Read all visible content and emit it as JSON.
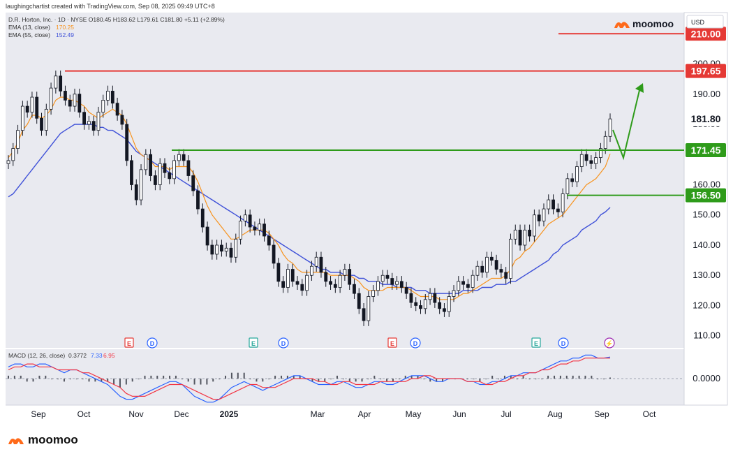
{
  "header": {
    "credit": "laughingchartist created with TradingView.com, Sep 08, 2025 09:49 UTC+8",
    "symbol_line": "D.R. Horton, Inc. · 1D · NYSE  O180.45  H183.62  L179.61  C181.80  +5.11 (+2.89%)",
    "ema13_label": "EMA (13, close)",
    "ema13_value": "170.25",
    "ema55_label": "EMA (55, close)",
    "ema55_value": "152.49"
  },
  "brand": {
    "name": "moomoo",
    "name_bottom": "moomoo"
  },
  "currency": "USD",
  "colors": {
    "up": "#ffffff",
    "down": "#131722",
    "ema13": "#f7931e",
    "ema55": "#3f51d8",
    "resistance": "#e53935",
    "support": "#2e9b1a",
    "arrow": "#2e9b1a",
    "panel_bg": "#e9eaf0",
    "macd_line": "#2962ff",
    "signal_line": "#f23645"
  },
  "chart_data": {
    "type": "candlestick",
    "title": "D.R. Horton, Inc. · 1D · NYSE",
    "ylim": [
      106,
      217
    ],
    "y_ticks": [
      "110.00",
      "120.00",
      "130.00",
      "140.00",
      "150.00",
      "160.00",
      "170.00",
      "180.00",
      "190.00",
      "200.00"
    ],
    "x_ticks": [
      "Sep",
      "Oct",
      "Nov",
      "Dec",
      "2025",
      "Mar",
      "Apr",
      "May",
      "Jun",
      "Jul",
      "Aug",
      "Sep",
      "Oct"
    ],
    "price_tags": [
      {
        "label": "210.00",
        "value": 210.0,
        "kind": "resistance"
      },
      {
        "label": "197.65",
        "value": 197.65,
        "kind": "resistance"
      },
      {
        "label": "181.80",
        "value": 181.8,
        "kind": "last"
      },
      {
        "label": "171.45",
        "value": 171.45,
        "kind": "support"
      },
      {
        "label": "156.50",
        "value": 156.5,
        "kind": "support"
      }
    ],
    "levels": [
      {
        "value": 210.0,
        "from_month": "Oct-2025",
        "kind": "resistance"
      },
      {
        "value": 197.65,
        "from_month": "Sep-2024",
        "kind": "resistance"
      },
      {
        "value": 171.45,
        "from_month": "Dec-2024",
        "kind": "support"
      },
      {
        "value": 156.5,
        "from_month": "Aug-2025",
        "kind": "support"
      }
    ],
    "price_path": [
      168,
      172,
      178,
      186,
      184,
      189,
      182,
      178,
      185,
      192,
      196,
      191,
      188,
      186,
      190,
      184,
      180,
      181,
      178,
      184,
      188,
      191,
      187,
      183,
      180,
      168,
      160,
      155,
      165,
      170,
      163,
      160,
      167,
      164,
      162,
      168,
      170,
      168,
      163,
      158,
      152,
      146,
      140,
      137,
      140,
      138,
      139,
      136,
      142,
      148,
      150,
      146,
      145,
      147,
      143,
      140,
      134,
      128,
      126,
      132,
      128,
      127,
      125,
      130,
      133,
      136,
      131,
      128,
      127,
      126,
      130,
      132,
      127,
      124,
      119,
      115,
      123,
      125,
      128,
      130,
      129,
      127,
      128,
      126,
      124,
      121,
      120,
      119,
      122,
      124,
      121,
      119,
      118,
      123,
      125,
      128,
      127,
      126,
      130,
      133,
      131,
      136,
      135,
      132,
      131,
      129,
      142,
      145,
      140,
      145,
      143,
      150,
      148,
      152,
      155,
      152,
      151,
      157,
      162,
      161,
      166,
      170,
      168,
      167,
      169,
      172,
      176,
      181.8
    ],
    "ema13_path": [
      169,
      171,
      174,
      178,
      180,
      183,
      183,
      182,
      183,
      185,
      188,
      189,
      189,
      188,
      188,
      187,
      186,
      184,
      183,
      182,
      183,
      184,
      185,
      184,
      183,
      180,
      176,
      172,
      170,
      169,
      168,
      166,
      166,
      166,
      165,
      166,
      166,
      166,
      166,
      164,
      161,
      157,
      153,
      150,
      148,
      146,
      144,
      142,
      142,
      143,
      144,
      145,
      145,
      145,
      145,
      144,
      142,
      140,
      137,
      135,
      134,
      132,
      131,
      131,
      131,
      131,
      131,
      131,
      130,
      130,
      130,
      130,
      130,
      129,
      128,
      126,
      125,
      125,
      125,
      125,
      126,
      126,
      126,
      126,
      126,
      125,
      124,
      123,
      123,
      123,
      123,
      122,
      122,
      122,
      122,
      123,
      124,
      124,
      125,
      126,
      127,
      128,
      129,
      129,
      129,
      130,
      132,
      135,
      136,
      138,
      139,
      141,
      143,
      145,
      147,
      148,
      149,
      150,
      152,
      154,
      156,
      158,
      160,
      161,
      162,
      164,
      166,
      170.25
    ],
    "ema55_path": [
      156,
      157,
      159,
      161,
      163,
      165,
      167,
      169,
      171,
      173,
      175,
      177,
      178,
      179,
      180,
      180,
      180,
      180,
      180,
      179,
      179,
      178,
      178,
      177,
      176,
      175,
      173,
      171,
      170,
      169,
      168,
      167,
      166,
      165,
      164,
      163,
      162,
      161,
      160,
      159,
      158,
      157,
      156,
      155,
      154,
      153,
      152,
      151,
      150,
      149,
      148,
      147,
      146,
      145,
      144,
      143,
      142,
      141,
      140,
      139,
      138,
      137,
      136,
      135,
      134,
      133,
      132,
      132,
      131,
      131,
      131,
      130,
      130,
      130,
      129,
      129,
      128,
      128,
      128,
      127,
      127,
      127,
      126,
      126,
      126,
      126,
      125,
      125,
      125,
      124,
      124,
      124,
      124,
      124,
      124,
      124,
      125,
      125,
      125,
      125,
      126,
      126,
      126,
      127,
      127,
      127,
      128,
      128,
      129,
      130,
      131,
      132,
      133,
      134,
      135,
      137,
      138,
      140,
      141,
      142,
      143,
      145,
      146,
      147,
      148,
      150,
      151,
      152.49
    ],
    "events": [
      {
        "label": "E",
        "month": "Oct",
        "kind": "earnings"
      },
      {
        "label": "D",
        "month": "Nov",
        "kind": "dividend"
      },
      {
        "label": "E",
        "month": "Jan",
        "kind": "earnings"
      },
      {
        "label": "D",
        "month": "Feb",
        "kind": "dividend"
      },
      {
        "label": "E",
        "month": "Apr",
        "kind": "earnings"
      },
      {
        "label": "D",
        "month": "May",
        "kind": "dividend"
      },
      {
        "label": "E",
        "month": "Jul",
        "kind": "earnings"
      },
      {
        "label": "D",
        "month": "Aug",
        "kind": "dividend"
      },
      {
        "label": "⚡",
        "month": "Sep",
        "kind": "split"
      }
    ],
    "macd": {
      "label": "MACD (12, 26, close)",
      "hist_value": "0.3772",
      "macd_value": "7.33",
      "signal_value": "6.95",
      "zero_label": "0.0000",
      "ylim": [
        -9,
        10
      ],
      "macd_path": [
        4,
        5,
        5,
        4,
        4,
        5,
        5,
        4,
        3,
        2,
        3,
        3,
        2,
        1,
        0,
        -1,
        -2,
        -4,
        -6,
        -7,
        -7,
        -6,
        -5,
        -4,
        -3,
        -2,
        -1,
        -1,
        -2,
        -4,
        -6,
        -7,
        -8,
        -8,
        -7,
        -5,
        -3,
        -2,
        -1,
        -2,
        -3,
        -4,
        -3,
        -2,
        -1,
        0,
        1,
        1,
        0,
        -1,
        -2,
        -2,
        -2,
        -1,
        -1,
        -2,
        -3,
        -3,
        -2,
        -1,
        -1,
        -2,
        -2,
        -1,
        0,
        1,
        1,
        1,
        0,
        -1,
        -1,
        0,
        0,
        0,
        -1,
        -1,
        -2,
        -2,
        -1,
        -1,
        0,
        1,
        1,
        2,
        2,
        2,
        3,
        4,
        5,
        6,
        6,
        7,
        7,
        8,
        8,
        7,
        7,
        7.33
      ],
      "signal_path": [
        3,
        4,
        4,
        5,
        5,
        4,
        4,
        4,
        3,
        3,
        3,
        3,
        2,
        2,
        1,
        0,
        -1,
        -2,
        -3,
        -5,
        -6,
        -6,
        -6,
        -5,
        -4,
        -3,
        -2,
        -2,
        -2,
        -3,
        -4,
        -5,
        -6,
        -7,
        -7,
        -6,
        -5,
        -4,
        -3,
        -2,
        -2,
        -3,
        -3,
        -3,
        -2,
        -1,
        0,
        0,
        0,
        0,
        -1,
        -1,
        -2,
        -2,
        -1,
        -1,
        -2,
        -2,
        -2,
        -2,
        -1,
        -1,
        -1,
        -1,
        -1,
        0,
        0,
        1,
        1,
        0,
        0,
        0,
        0,
        0,
        -1,
        -1,
        -1,
        -2,
        -2,
        -1,
        -1,
        0,
        1,
        1,
        2,
        2,
        3,
        3,
        4,
        5,
        5,
        6,
        6,
        7,
        7,
        7,
        7,
        6.95
      ]
    }
  }
}
